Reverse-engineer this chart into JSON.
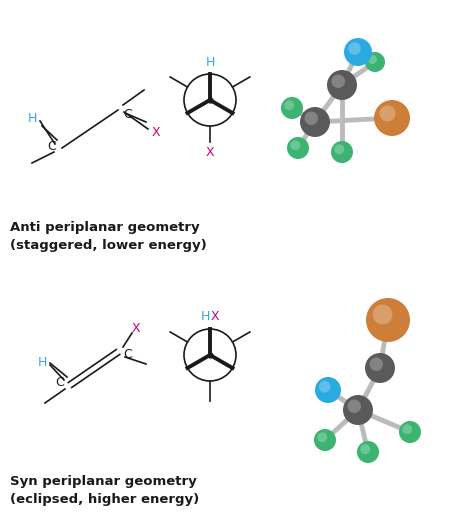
{
  "bg_color": "#ffffff",
  "cyan_color": "#29ABE2",
  "magenta_color": "#CC007A",
  "black_color": "#1a1a1a",
  "label1_line1": "Anti periplanar geometry",
  "label1_line2": "(staggered, lower energy)",
  "label2_line1": "Syn periplanar geometry",
  "label2_line2": "(eclipsed, higher energy)",
  "ball_colors": {
    "gray": "#5a5a5a",
    "green": "#3CB371",
    "blue": "#29ABE2",
    "brown": "#CD7F3A",
    "bond": "#BBBBBB"
  },
  "figsize": [
    4.74,
    5.26
  ],
  "dpi": 100
}
